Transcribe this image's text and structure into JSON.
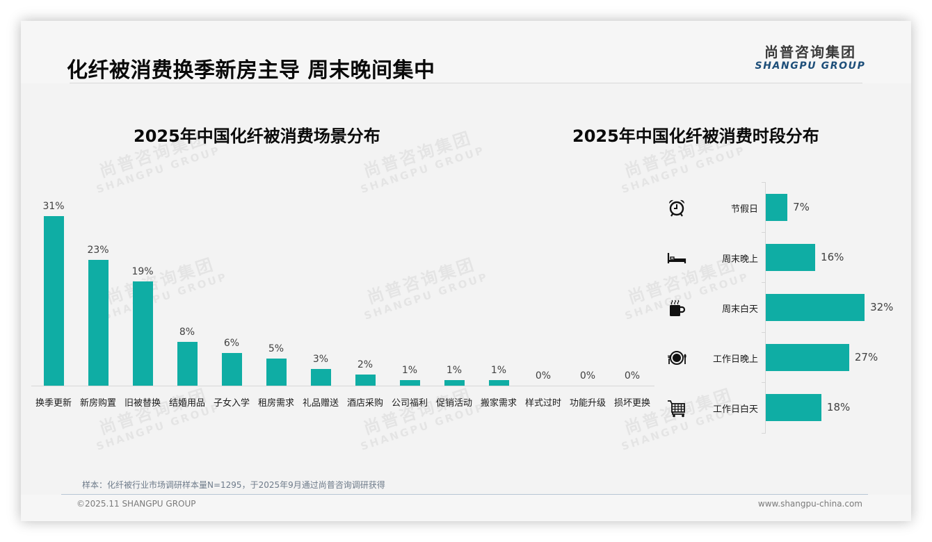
{
  "header": {
    "title": "化纤被消费换季新房主导 周末晚间集中",
    "logo_cn": "尚普咨询集团",
    "logo_en": "SHANGPU GROUP"
  },
  "watermark": {
    "cn": "尚普咨询集团",
    "en": "SHANGPU GROUP"
  },
  "colors": {
    "bar": "#0fada4",
    "logo_en": "#1d4e79",
    "background": "#f3f3f3"
  },
  "left_chart": {
    "title": "2025年中国化纤被消费场景分布",
    "bars": [
      {
        "label": "换季更新",
        "value": 31,
        "display": "31%"
      },
      {
        "label": "新房购置",
        "value": 23,
        "display": "23%"
      },
      {
        "label": "旧被替换",
        "value": 19,
        "display": "19%"
      },
      {
        "label": "结婚用品",
        "value": 8,
        "display": "8%"
      },
      {
        "label": "子女入学",
        "value": 6,
        "display": "6%"
      },
      {
        "label": "租房需求",
        "value": 5,
        "display": "5%"
      },
      {
        "label": "礼品赠送",
        "value": 3,
        "display": "3%"
      },
      {
        "label": "酒店采购",
        "value": 2,
        "display": "2%"
      },
      {
        "label": "公司福利",
        "value": 1,
        "display": "1%"
      },
      {
        "label": "促销活动",
        "value": 1,
        "display": "1%"
      },
      {
        "label": "搬家需求",
        "value": 1,
        "display": "1%"
      },
      {
        "label": "样式过时",
        "value": 0,
        "display": "0%"
      },
      {
        "label": "功能升级",
        "value": 0,
        "display": "0%"
      },
      {
        "label": "损坏更换",
        "value": 0,
        "display": "0%"
      }
    ]
  },
  "right_chart": {
    "title": "2025年中国化纤被消费时段分布",
    "bars": [
      {
        "label": "节假日",
        "value": 7,
        "display": "7%",
        "icon": "alarm-clock-icon"
      },
      {
        "label": "周末晚上",
        "value": 16,
        "display": "16%",
        "icon": "bed-icon"
      },
      {
        "label": "周末白天",
        "value": 32,
        "display": "32%",
        "icon": "coffee-mug-icon"
      },
      {
        "label": "工作日晚上",
        "value": 27,
        "display": "27%",
        "icon": "dinner-plate-icon"
      },
      {
        "label": "工作日白天",
        "value": 18,
        "display": "18%",
        "icon": "shopping-cart-icon"
      }
    ]
  },
  "footer": {
    "note": "样本：化纤被行业市场调研样本量N=1295，于2025年9月通过尚普咨询调研获得",
    "copyright": "©2025.11 SHANGPU GROUP",
    "website": "www.shangpu-china.com"
  },
  "chart_data": [
    {
      "type": "bar",
      "title": "2025年中国化纤被消费场景分布",
      "categories": [
        "换季更新",
        "新房购置",
        "旧被替换",
        "结婚用品",
        "子女入学",
        "租房需求",
        "礼品赠送",
        "酒店采购",
        "公司福利",
        "促销活动",
        "搬家需求",
        "样式过时",
        "功能升级",
        "损坏更换"
      ],
      "values": [
        31,
        23,
        19,
        8,
        6,
        5,
        3,
        2,
        1,
        1,
        1,
        0,
        0,
        0
      ],
      "unit": "%",
      "xlabel": "",
      "ylabel": "",
      "ylim": [
        0,
        35
      ],
      "grid": false,
      "legend": null,
      "orientation": "vertical",
      "data_labels": true
    },
    {
      "type": "bar",
      "title": "2025年中国化纤被消费时段分布",
      "categories": [
        "节假日",
        "周末晚上",
        "周末白天",
        "工作日晚上",
        "工作日白天"
      ],
      "values": [
        7,
        16,
        32,
        27,
        18
      ],
      "unit": "%",
      "xlabel": "",
      "ylabel": "",
      "xlim": [
        0,
        35
      ],
      "grid": false,
      "legend": null,
      "orientation": "horizontal",
      "data_labels": true
    }
  ]
}
